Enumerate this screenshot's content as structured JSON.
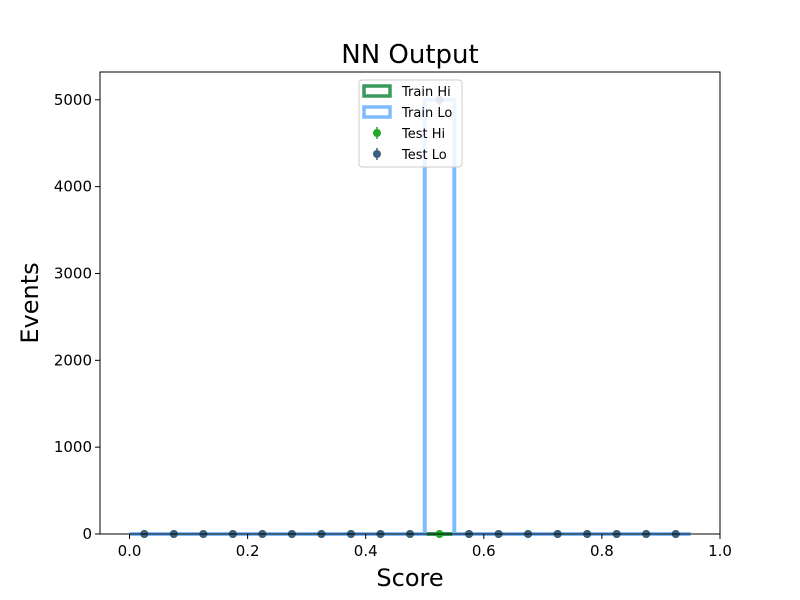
{
  "chart_data": {
    "type": "histogram",
    "title": "NN Output",
    "xlabel": "Score",
    "ylabel": "Events",
    "xlim": [
      -0.05,
      1.0
    ],
    "ylim": [
      0,
      5320
    ],
    "xticks": [
      0.0,
      0.2,
      0.4,
      0.6,
      0.8,
      1.0
    ],
    "xtick_labels": [
      "0.0",
      "0.2",
      "0.4",
      "0.6",
      "0.8",
      "1.0"
    ],
    "yticks": [
      0,
      1000,
      2000,
      3000,
      4000,
      5000
    ],
    "ytick_labels": [
      "0",
      "1000",
      "2000",
      "3000",
      "4000",
      "5000"
    ],
    "bin_edges": [
      0.0,
      0.05,
      0.1,
      0.15,
      0.2,
      0.25,
      0.3,
      0.35,
      0.4,
      0.45,
      0.5,
      0.55,
      0.6,
      0.65,
      0.7,
      0.75,
      0.8,
      0.85,
      0.9,
      0.95
    ],
    "legend_position": "upper center",
    "grid": false,
    "series": [
      {
        "name": "Train Hi",
        "kind": "step",
        "color": "#3a9a5c",
        "values": [
          0,
          0,
          0,
          0,
          0,
          0,
          0,
          0,
          0,
          0,
          0,
          0,
          0,
          0,
          0,
          0,
          0,
          0,
          0
        ]
      },
      {
        "name": "Train Lo",
        "kind": "step",
        "color": "#7fbcff",
        "values": [
          0,
          0,
          0,
          0,
          0,
          0,
          0,
          0,
          0,
          0,
          5000,
          0,
          0,
          0,
          0,
          0,
          0,
          0,
          0
        ]
      },
      {
        "name": "Test Hi",
        "kind": "errorbar",
        "color": "#1fa824",
        "x": [
          0.025,
          0.075,
          0.125,
          0.175,
          0.225,
          0.275,
          0.325,
          0.375,
          0.425,
          0.475,
          0.525,
          0.575,
          0.625,
          0.675,
          0.725,
          0.775,
          0.825,
          0.875,
          0.925
        ],
        "values": [
          0,
          0,
          0,
          0,
          0,
          0,
          0,
          0,
          0,
          0,
          0,
          0,
          0,
          0,
          0,
          0,
          0,
          0,
          0
        ]
      },
      {
        "name": "Test Lo",
        "kind": "errorbar",
        "color": "#3b5f80",
        "x": [
          0.025,
          0.075,
          0.125,
          0.175,
          0.225,
          0.275,
          0.325,
          0.375,
          0.425,
          0.475,
          0.525,
          0.575,
          0.625,
          0.675,
          0.725,
          0.775,
          0.825,
          0.875,
          0.925
        ],
        "values": [
          0,
          0,
          0,
          0,
          0,
          0,
          0,
          0,
          0,
          0,
          5000,
          0,
          0,
          0,
          0,
          0,
          0,
          0,
          0
        ]
      }
    ]
  }
}
